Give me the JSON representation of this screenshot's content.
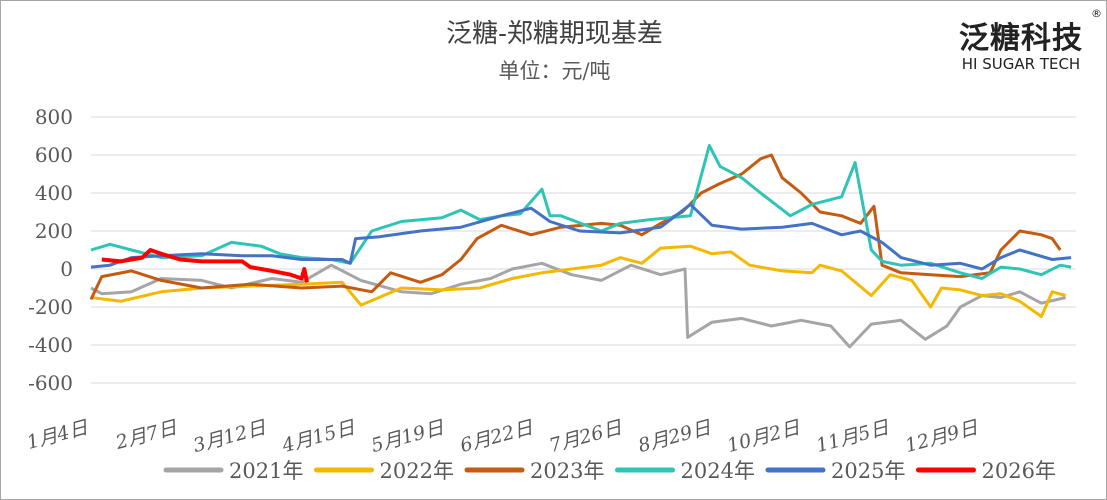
{
  "header": {
    "title": "泛糖-郑糖期现基差",
    "subtitle": "单位：元/吨"
  },
  "logo": {
    "cn": "泛糖科技",
    "en": "HI SUGAR TECH",
    "reg": "®"
  },
  "chart_data": {
    "type": "line",
    "title": "泛糖-郑糖期现基差",
    "ylabel": "单位：元/吨",
    "ylim": [
      -600,
      800
    ],
    "yticks": [
      800,
      600,
      400,
      200,
      0,
      -200,
      -400,
      -600
    ],
    "xlim_days": [
      0,
      365
    ],
    "xticks": [
      {
        "day": 0,
        "label": "1月4日"
      },
      {
        "day": 34,
        "label": "2月7日"
      },
      {
        "day": 67,
        "label": "3月12日"
      },
      {
        "day": 101,
        "label": "4月15日"
      },
      {
        "day": 135,
        "label": "5月19日"
      },
      {
        "day": 169,
        "label": "6月22日"
      },
      {
        "day": 203,
        "label": "7月26日"
      },
      {
        "day": 237,
        "label": "8月29日"
      },
      {
        "day": 271,
        "label": "10月2日"
      },
      {
        "day": 305,
        "label": "11月5日"
      },
      {
        "day": 339,
        "label": "12月9日"
      }
    ],
    "grid": true,
    "legend": "bottom",
    "series": [
      {
        "name": "2021年",
        "color": "#a5a5a5",
        "points": [
          [
            0,
            -100
          ],
          [
            4,
            -130
          ],
          [
            15,
            -120
          ],
          [
            26,
            -50
          ],
          [
            41,
            -60
          ],
          [
            52,
            -100
          ],
          [
            67,
            -50
          ],
          [
            78,
            -70
          ],
          [
            89,
            20
          ],
          [
            100,
            -60
          ],
          [
            115,
            -120
          ],
          [
            126,
            -130
          ],
          [
            137,
            -80
          ],
          [
            148,
            -50
          ],
          [
            156,
            0
          ],
          [
            167,
            30
          ],
          [
            178,
            -30
          ],
          [
            189,
            -60
          ],
          [
            200,
            20
          ],
          [
            211,
            -30
          ],
          [
            220,
            0
          ],
          [
            221,
            -360
          ],
          [
            230,
            -280
          ],
          [
            241,
            -260
          ],
          [
            252,
            -300
          ],
          [
            263,
            -270
          ],
          [
            274,
            -300
          ],
          [
            281,
            -410
          ],
          [
            289,
            -290
          ],
          [
            300,
            -270
          ],
          [
            309,
            -370
          ],
          [
            317,
            -300
          ],
          [
            322,
            -200
          ],
          [
            330,
            -140
          ],
          [
            337,
            -150
          ],
          [
            344,
            -120
          ],
          [
            352,
            -180
          ],
          [
            361,
            -150
          ]
        ]
      },
      {
        "name": "2022年",
        "color": "#f4b800",
        "points": [
          [
            0,
            -150
          ],
          [
            11,
            -170
          ],
          [
            26,
            -120
          ],
          [
            41,
            -100
          ],
          [
            59,
            -90
          ],
          [
            78,
            -80
          ],
          [
            93,
            -70
          ],
          [
            100,
            -190
          ],
          [
            115,
            -100
          ],
          [
            130,
            -110
          ],
          [
            144,
            -100
          ],
          [
            156,
            -50
          ],
          [
            167,
            -20
          ],
          [
            178,
            0
          ],
          [
            189,
            20
          ],
          [
            196,
            60
          ],
          [
            204,
            30
          ],
          [
            211,
            110
          ],
          [
            222,
            120
          ],
          [
            230,
            80
          ],
          [
            237,
            90
          ],
          [
            244,
            20
          ],
          [
            256,
            -10
          ],
          [
            267,
            -20
          ],
          [
            270,
            20
          ],
          [
            278,
            -10
          ],
          [
            289,
            -140
          ],
          [
            296,
            -30
          ],
          [
            304,
            -60
          ],
          [
            311,
            -200
          ],
          [
            315,
            -100
          ],
          [
            322,
            -110
          ],
          [
            330,
            -140
          ],
          [
            337,
            -130
          ],
          [
            344,
            -170
          ],
          [
            352,
            -250
          ],
          [
            356,
            -120
          ],
          [
            361,
            -140
          ]
        ]
      },
      {
        "name": "2023年",
        "color": "#c55a11",
        "points": [
          [
            0,
            -160
          ],
          [
            4,
            -40
          ],
          [
            15,
            -10
          ],
          [
            26,
            -60
          ],
          [
            41,
            -100
          ],
          [
            59,
            -80
          ],
          [
            78,
            -100
          ],
          [
            93,
            -90
          ],
          [
            104,
            -120
          ],
          [
            111,
            -20
          ],
          [
            122,
            -70
          ],
          [
            130,
            -30
          ],
          [
            137,
            50
          ],
          [
            143,
            160
          ],
          [
            152,
            230
          ],
          [
            163,
            180
          ],
          [
            174,
            220
          ],
          [
            189,
            240
          ],
          [
            196,
            230
          ],
          [
            204,
            180
          ],
          [
            211,
            240
          ],
          [
            219,
            300
          ],
          [
            226,
            400
          ],
          [
            233,
            450
          ],
          [
            241,
            500
          ],
          [
            248,
            580
          ],
          [
            252,
            600
          ],
          [
            256,
            480
          ],
          [
            263,
            400
          ],
          [
            270,
            300
          ],
          [
            278,
            280
          ],
          [
            285,
            240
          ],
          [
            290,
            330
          ],
          [
            293,
            20
          ],
          [
            300,
            -20
          ],
          [
            311,
            -30
          ],
          [
            322,
            -40
          ],
          [
            333,
            -20
          ],
          [
            337,
            100
          ],
          [
            344,
            200
          ],
          [
            352,
            180
          ],
          [
            356,
            160
          ],
          [
            359,
            100
          ]
        ]
      },
      {
        "name": "2024年",
        "color": "#2ec4b6",
        "points": [
          [
            0,
            100
          ],
          [
            7,
            130
          ],
          [
            15,
            100
          ],
          [
            26,
            60
          ],
          [
            41,
            70
          ],
          [
            52,
            140
          ],
          [
            63,
            120
          ],
          [
            70,
            80
          ],
          [
            78,
            60
          ],
          [
            89,
            50
          ],
          [
            96,
            30
          ],
          [
            104,
            200
          ],
          [
            115,
            250
          ],
          [
            130,
            270
          ],
          [
            137,
            310
          ],
          [
            144,
            260
          ],
          [
            152,
            280
          ],
          [
            159,
            290
          ],
          [
            167,
            420
          ],
          [
            170,
            280
          ],
          [
            174,
            280
          ],
          [
            189,
            200
          ],
          [
            196,
            240
          ],
          [
            207,
            260
          ],
          [
            222,
            280
          ],
          [
            229,
            650
          ],
          [
            233,
            540
          ],
          [
            241,
            480
          ],
          [
            248,
            400
          ],
          [
            259,
            280
          ],
          [
            267,
            340
          ],
          [
            278,
            380
          ],
          [
            283,
            560
          ],
          [
            289,
            100
          ],
          [
            293,
            40
          ],
          [
            300,
            20
          ],
          [
            311,
            30
          ],
          [
            322,
            -20
          ],
          [
            330,
            -50
          ],
          [
            337,
            10
          ],
          [
            344,
            0
          ],
          [
            352,
            -30
          ],
          [
            359,
            20
          ],
          [
            363,
            10
          ]
        ]
      },
      {
        "name": "2025年",
        "color": "#4472c4",
        "points": [
          [
            0,
            10
          ],
          [
            7,
            20
          ],
          [
            15,
            60
          ],
          [
            26,
            70
          ],
          [
            41,
            80
          ],
          [
            56,
            70
          ],
          [
            67,
            70
          ],
          [
            78,
            50
          ],
          [
            93,
            50
          ],
          [
            96,
            30
          ],
          [
            98,
            160
          ],
          [
            107,
            170
          ],
          [
            122,
            200
          ],
          [
            137,
            220
          ],
          [
            152,
            280
          ],
          [
            163,
            320
          ],
          [
            170,
            250
          ],
          [
            181,
            200
          ],
          [
            196,
            190
          ],
          [
            211,
            220
          ],
          [
            222,
            340
          ],
          [
            230,
            230
          ],
          [
            241,
            210
          ],
          [
            256,
            220
          ],
          [
            267,
            240
          ],
          [
            278,
            180
          ],
          [
            285,
            200
          ],
          [
            293,
            140
          ],
          [
            300,
            60
          ],
          [
            311,
            20
          ],
          [
            322,
            30
          ],
          [
            330,
            0
          ],
          [
            337,
            60
          ],
          [
            344,
            100
          ],
          [
            356,
            50
          ],
          [
            363,
            60
          ]
        ]
      },
      {
        "name": "2026年",
        "color": "#ff0000",
        "points": [
          [
            4,
            50
          ],
          [
            11,
            40
          ],
          [
            19,
            60
          ],
          [
            22,
            100
          ],
          [
            26,
            80
          ],
          [
            33,
            50
          ],
          [
            41,
            40
          ],
          [
            56,
            40
          ],
          [
            59,
            10
          ],
          [
            67,
            -10
          ],
          [
            74,
            -30
          ],
          [
            78,
            -50
          ],
          [
            79,
            0
          ],
          [
            80,
            -70
          ]
        ]
      }
    ]
  }
}
